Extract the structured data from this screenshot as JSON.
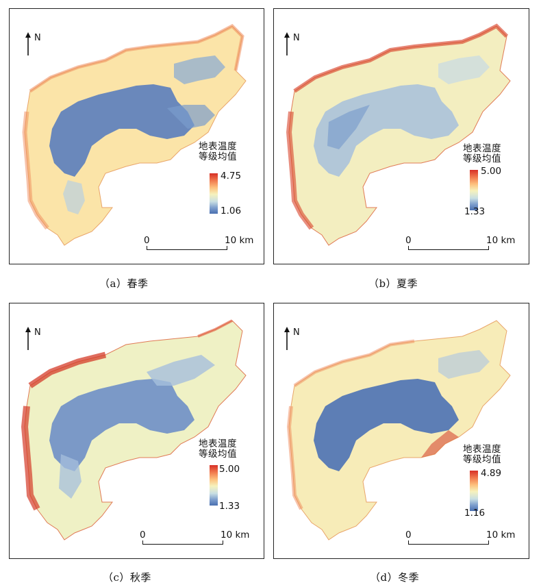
{
  "legend_title_line1": "地表温度",
  "legend_title_line2": "等级均值",
  "north_label": "N",
  "scale_zero": "0",
  "scale_distance": "10 km",
  "color_ramp": [
    "#d73027",
    "#f17a4e",
    "#fdbf7c",
    "#f6f2bd",
    "#c9dfe3",
    "#7e9fcd",
    "#4a70b0"
  ],
  "panels": [
    {
      "caption": "（a）春季",
      "max": "4.75",
      "min": "1.06"
    },
    {
      "caption": "（b）夏季",
      "max": "5.00",
      "min": "1.33"
    },
    {
      "caption": "（c）秋季",
      "max": "5.00",
      "min": "1.33"
    },
    {
      "caption": "（d）冬季",
      "max": "4.89",
      "min": "1.16"
    }
  ]
}
